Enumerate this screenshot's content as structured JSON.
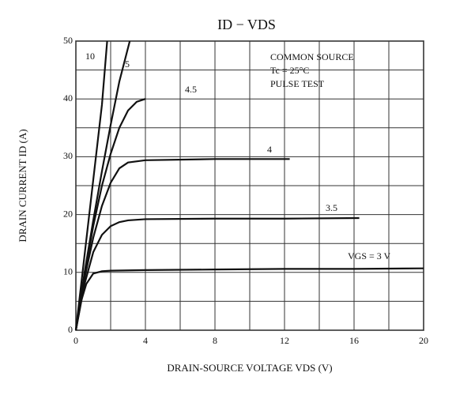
{
  "chart_data": {
    "type": "line",
    "title": "ID − VDS",
    "x_label": "DRAIN-SOURCE VOLTAGE  VDS  (V)",
    "y_label": "DRAIN CURRENT  ID  (A)",
    "annotations": [
      "COMMON SOURCE",
      "Tc = 25°C",
      "PULSE TEST"
    ],
    "xlim": [
      0,
      20
    ],
    "xticks": [
      0,
      4,
      8,
      12,
      16,
      20
    ],
    "xminor": [
      2,
      6,
      10,
      14,
      18
    ],
    "ylim": [
      0,
      50
    ],
    "yticks": [
      0,
      10,
      20,
      30,
      40,
      50
    ],
    "yminor": [
      5,
      15,
      25,
      35,
      45
    ],
    "grid": true,
    "color": "#111111",
    "series": [
      {
        "name": "10",
        "x": [
          0,
          0.5,
          1,
          1.5,
          1.8
        ],
        "values": [
          0,
          13,
          26,
          39,
          50
        ]
      },
      {
        "name": "5",
        "x": [
          0,
          0.5,
          1,
          1.5,
          2,
          2.5,
          3.1
        ],
        "values": [
          0,
          10,
          19,
          27.5,
          35.5,
          43,
          50
        ]
      },
      {
        "name": "4.5",
        "x": [
          0,
          0.5,
          1,
          1.5,
          2,
          2.5,
          3,
          3.5,
          4
        ],
        "values": [
          0,
          9.5,
          18,
          25,
          30.5,
          35,
          38,
          39.5,
          40
        ]
      },
      {
        "name": "4",
        "x": [
          0,
          0.5,
          1,
          1.5,
          2,
          2.5,
          3,
          4,
          8,
          12.3
        ],
        "values": [
          0,
          9,
          16,
          21.5,
          25.5,
          28,
          29,
          29.4,
          29.6,
          29.6
        ]
      },
      {
        "name": "3.5",
        "x": [
          0,
          0.5,
          1,
          1.5,
          2,
          2.5,
          3,
          4,
          8,
          12,
          16.3
        ],
        "values": [
          0,
          8,
          13.5,
          16.5,
          18,
          18.7,
          19,
          19.2,
          19.3,
          19.3,
          19.4
        ]
      },
      {
        "name": "VGS = 3 V",
        "x": [
          0,
          0.3,
          0.6,
          1,
          1.5,
          2,
          4,
          8,
          12,
          16,
          20
        ],
        "values": [
          0,
          5,
          8,
          9.8,
          10.2,
          10.3,
          10.4,
          10.5,
          10.6,
          10.6,
          10.7
        ]
      }
    ]
  }
}
